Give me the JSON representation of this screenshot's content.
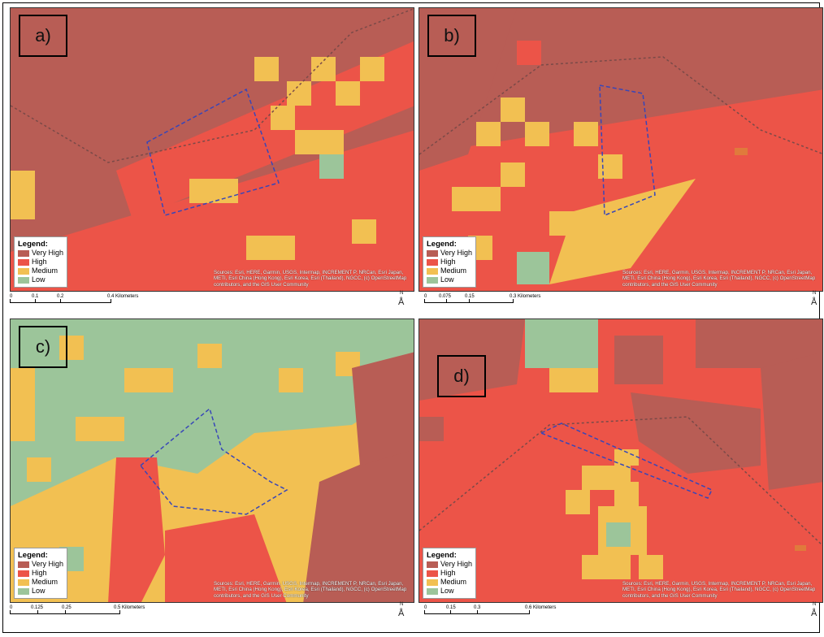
{
  "colors": {
    "very_high": "#b85d55",
    "high": "#ec5448",
    "medium": "#f2c052",
    "low": "#9cc59a"
  },
  "legend": {
    "title": "Legend:",
    "items": [
      "Very High",
      "High",
      "Medium",
      "Low"
    ]
  },
  "credits": "Sources: Esri, HERE, Garmin, USGS, Intermap, INCREMENT P, NRCan, Esri Japan, METI, Esri China (Hong Kong), Esri Korea, Esri (Thailand), NGCC, (c) OpenStreetMap contributors, and the GIS User Community",
  "north": "N",
  "panels": [
    {
      "label": "a)",
      "scale": [
        "0",
        "0.1",
        "0.2",
        "0.4 Kilometers"
      ]
    },
    {
      "label": "b)",
      "scale": [
        "0",
        "0.075",
        "0.15",
        "0.3 Kilometers"
      ]
    },
    {
      "label": "c)",
      "scale": [
        "0",
        "0.125",
        "0.25",
        "0.5 Kilometers"
      ]
    },
    {
      "label": "d)",
      "scale": [
        "0",
        "0.15",
        "0.3",
        "0.6 Kilometers"
      ]
    }
  ]
}
